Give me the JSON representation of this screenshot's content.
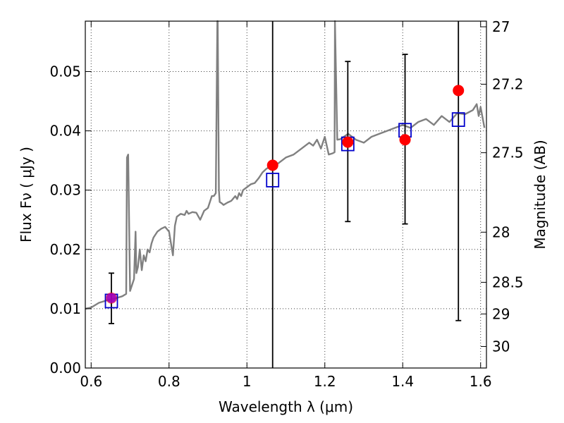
{
  "chart_data": {
    "type": "scatter",
    "xlabel": "Wavelength  λ (μm)",
    "ylabel_left": "Flux  Fν  ( μJy )",
    "ylabel_right": "Magnitude (AB)",
    "xlim": [
      0.585,
      1.615
    ],
    "ylim": [
      0.0,
      0.0585
    ],
    "grid": true,
    "colors": {
      "spectrum": "#808080",
      "observed": "#ff0000",
      "model": "#0000cc",
      "errorbar": "#000000"
    },
    "x_ticks": [
      {
        "value": 0.6,
        "label": "0.6"
      },
      {
        "value": 0.8,
        "label": "0.8"
      },
      {
        "value": 1.0,
        "label": "1"
      },
      {
        "value": 1.2,
        "label": "1.2"
      },
      {
        "value": 1.4,
        "label": "1.4"
      },
      {
        "value": 1.6,
        "label": "1.6"
      }
    ],
    "y_ticks_left": [
      {
        "value": 0.0,
        "label": "0.00"
      },
      {
        "value": 0.01,
        "label": "0.01"
      },
      {
        "value": 0.02,
        "label": "0.02"
      },
      {
        "value": 0.03,
        "label": "0.03"
      },
      {
        "value": 0.04,
        "label": "0.04"
      },
      {
        "value": 0.05,
        "label": "0.05"
      }
    ],
    "y_ticks_right": [
      {
        "mag": 27.0,
        "label": "27"
      },
      {
        "mag": 27.2,
        "label": "27.2"
      },
      {
        "mag": 27.5,
        "label": "27.5"
      },
      {
        "mag": 28.0,
        "label": "28"
      },
      {
        "mag": 28.5,
        "label": "28.5"
      },
      {
        "mag": 29.0,
        "label": "29"
      },
      {
        "mag": 30.0,
        "label": "30"
      }
    ],
    "observed_points": [
      {
        "x": 0.652,
        "y": 0.0118,
        "ylow": 0.0075,
        "yhigh": 0.016
      },
      {
        "x": 1.066,
        "y": 0.0342,
        "ylow": 0.0,
        "yhigh": 0.0585
      },
      {
        "x": 1.259,
        "y": 0.0381,
        "ylow": 0.0247,
        "yhigh": 0.0517
      },
      {
        "x": 1.406,
        "y": 0.0385,
        "ylow": 0.0243,
        "yhigh": 0.0529
      },
      {
        "x": 1.543,
        "y": 0.0468,
        "ylow": 0.008,
        "yhigh": 0.0585
      }
    ],
    "model_points": [
      {
        "x": 0.652,
        "y": 0.0113
      },
      {
        "x": 1.066,
        "y": 0.0317
      },
      {
        "x": 1.259,
        "y": 0.0378
      },
      {
        "x": 1.406,
        "y": 0.0401
      },
      {
        "x": 1.543,
        "y": 0.0419
      }
    ],
    "spectrum": {
      "x": [
        0.585,
        0.6,
        0.61,
        0.62,
        0.64,
        0.66,
        0.68,
        0.69,
        0.692,
        0.695,
        0.7,
        0.71,
        0.714,
        0.716,
        0.72,
        0.725,
        0.73,
        0.735,
        0.74,
        0.745,
        0.75,
        0.755,
        0.76,
        0.77,
        0.78,
        0.79,
        0.8,
        0.81,
        0.815,
        0.82,
        0.83,
        0.84,
        0.845,
        0.85,
        0.86,
        0.87,
        0.88,
        0.89,
        0.9,
        0.91,
        0.915,
        0.92,
        0.924,
        0.925,
        0.928,
        0.93,
        0.935,
        0.94,
        0.95,
        0.96,
        0.97,
        0.975,
        0.98,
        0.985,
        0.99,
        1.0,
        1.01,
        1.02,
        1.03,
        1.04,
        1.05,
        1.06,
        1.08,
        1.1,
        1.12,
        1.14,
        1.16,
        1.17,
        1.18,
        1.19,
        1.2,
        1.21,
        1.22,
        1.225,
        1.226,
        1.232,
        1.24,
        1.26,
        1.28,
        1.3,
        1.32,
        1.34,
        1.36,
        1.38,
        1.4,
        1.42,
        1.44,
        1.46,
        1.48,
        1.5,
        1.52,
        1.54,
        1.56,
        1.58,
        1.59,
        1.595,
        1.6,
        1.61
      ],
      "y": [
        0.01,
        0.0102,
        0.0106,
        0.011,
        0.0114,
        0.0117,
        0.0121,
        0.0125,
        0.0355,
        0.036,
        0.013,
        0.015,
        0.023,
        0.016,
        0.017,
        0.02,
        0.0165,
        0.019,
        0.018,
        0.02,
        0.0195,
        0.021,
        0.022,
        0.023,
        0.0235,
        0.0238,
        0.023,
        0.019,
        0.024,
        0.0255,
        0.026,
        0.0258,
        0.0265,
        0.026,
        0.0263,
        0.0262,
        0.025,
        0.0265,
        0.027,
        0.029,
        0.029,
        0.0295,
        0.0585,
        0.0585,
        0.03,
        0.028,
        0.0278,
        0.0275,
        0.0279,
        0.0282,
        0.029,
        0.0285,
        0.0295,
        0.029,
        0.03,
        0.0305,
        0.031,
        0.0312,
        0.032,
        0.033,
        0.0336,
        0.034,
        0.0345,
        0.0355,
        0.036,
        0.037,
        0.038,
        0.0375,
        0.0385,
        0.037,
        0.039,
        0.036,
        0.0362,
        0.0364,
        0.0585,
        0.0385,
        0.0386,
        0.0395,
        0.0385,
        0.038,
        0.039,
        0.0395,
        0.04,
        0.0405,
        0.041,
        0.0405,
        0.0415,
        0.042,
        0.041,
        0.0425,
        0.0415,
        0.043,
        0.0428,
        0.0435,
        0.0445,
        0.0425,
        0.044,
        0.0405
      ]
    }
  }
}
